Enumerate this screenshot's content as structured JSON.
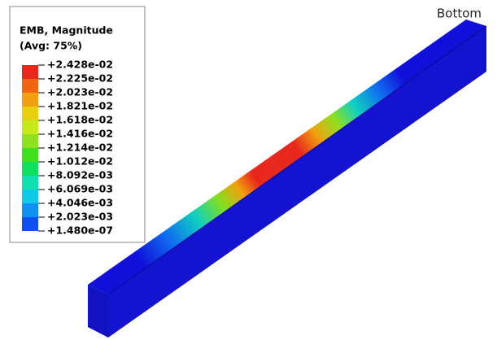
{
  "legend": {
    "title": "EMB, Magnitude",
    "subtitle": "(Avg: 75%)",
    "labels": [
      "+2.428e-02",
      "+2.225e-02",
      "+2.023e-02",
      "+1.821e-02",
      "+1.618e-02",
      "+1.416e-02",
      "+1.214e-02",
      "+1.012e-02",
      "+8.092e-03",
      "+6.069e-03",
      "+4.046e-03",
      "+2.023e-03",
      "+1.480e-07"
    ],
    "colors": [
      "#e8281c",
      "#f06414",
      "#f0a010",
      "#e8d010",
      "#c8e818",
      "#90e020",
      "#40e020",
      "#10e060",
      "#10e0b0",
      "#10c8e8",
      "#1090f0",
      "#1050f0",
      "#1010d8"
    ]
  },
  "annotation": "Bottom"
}
